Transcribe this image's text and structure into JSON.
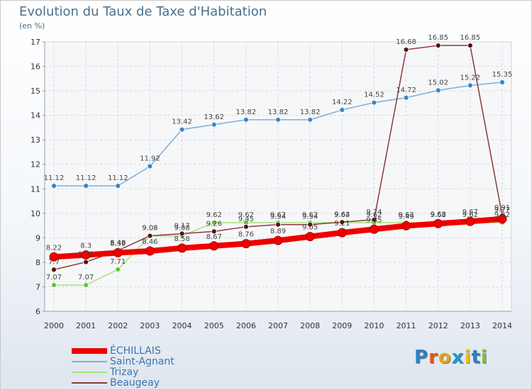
{
  "header": {
    "title": "Evolution du Taux de Taxe d'Habitation",
    "unit": "(en %)"
  },
  "logo": {
    "text": "Proxiti",
    "letter_colors": [
      "#2e7fc4",
      "#e05a1c",
      "#e8a21b",
      "#1b9ad6",
      "#e8c21b",
      "#2e7fc4",
      "#7cc242"
    ]
  },
  "chart_data": {
    "type": "line",
    "title": "Evolution du Taux de Taxe d'Habitation",
    "ylabel": "(en %)",
    "xlabel": "",
    "x": [
      2000,
      2001,
      2002,
      2003,
      2004,
      2005,
      2006,
      2007,
      2008,
      2009,
      2010,
      2011,
      2012,
      2013,
      2014
    ],
    "ylim": [
      6,
      17
    ],
    "yticks": [
      6,
      7,
      8,
      9,
      10,
      11,
      12,
      13,
      14,
      15,
      16,
      17
    ],
    "grid": true,
    "legend_position": "bottom-left",
    "series": [
      {
        "name": "ÉCHILLAIS",
        "color": "#ee0000",
        "style": "thick",
        "values": [
          8.22,
          8.3,
          8.39,
          8.46,
          8.58,
          8.67,
          8.76,
          8.89,
          9.05,
          9.21,
          9.35,
          9.49,
          9.58,
          9.67,
          9.77
        ],
        "labels": [
          "8.22",
          "8.3",
          "8.39",
          "8.46",
          "8.58",
          "8.67",
          "8.76",
          "8.89",
          "9.05",
          "9.21",
          "9.35",
          "9.49",
          "9.58",
          "9.67",
          "9.77"
        ]
      },
      {
        "name": "Saint-Agnant",
        "color": "#7aaed9",
        "point_color": "#3d85c6",
        "style": "normal",
        "values": [
          11.12,
          11.12,
          11.12,
          11.92,
          13.42,
          13.62,
          13.82,
          13.82,
          13.82,
          14.22,
          14.52,
          14.72,
          15.02,
          15.22,
          15.35
        ],
        "labels": [
          "11.12",
          "11.12",
          "11.12",
          "11.92",
          "13.42",
          "13.62",
          "13.82",
          "13.82",
          "13.82",
          "14.22",
          "14.52",
          "14.72",
          "15.02",
          "15.22",
          "15.35"
        ]
      },
      {
        "name": "Trizay",
        "color": "#a8e07a",
        "point_color": "#5fc830",
        "style": "normal",
        "values": [
          7.07,
          7.07,
          7.71,
          9.08,
          9.08,
          9.62,
          9.62,
          9.62,
          9.62,
          9.62,
          9.62,
          9.62,
          9.62,
          9.62,
          9.62
        ],
        "labels": [
          "7.07",
          "7.07",
          "7.71",
          "9.08",
          "9.08",
          "9.62",
          "9.62",
          "9.62",
          "9.62",
          "9.62",
          "9.62",
          "9.62",
          "9.62",
          "9.62",
          "9.62"
        ]
      },
      {
        "name": "Beaugeay",
        "color": "#8b3a3a",
        "point_color": "#5a1010",
        "style": "normal",
        "values": [
          7.7,
          8.01,
          8.48,
          9.08,
          9.17,
          9.26,
          9.45,
          9.54,
          9.54,
          9.64,
          9.74,
          16.68,
          16.85,
          16.85,
          9.91
        ],
        "labels": [
          "7.7",
          "8.01",
          "8.48",
          "9.08",
          "9.17",
          "9.26",
          "9.45",
          "9.54",
          "9.54",
          "9.64",
          "9.74",
          "16.68",
          "16.85",
          "16.85",
          "9.91"
        ]
      }
    ]
  }
}
